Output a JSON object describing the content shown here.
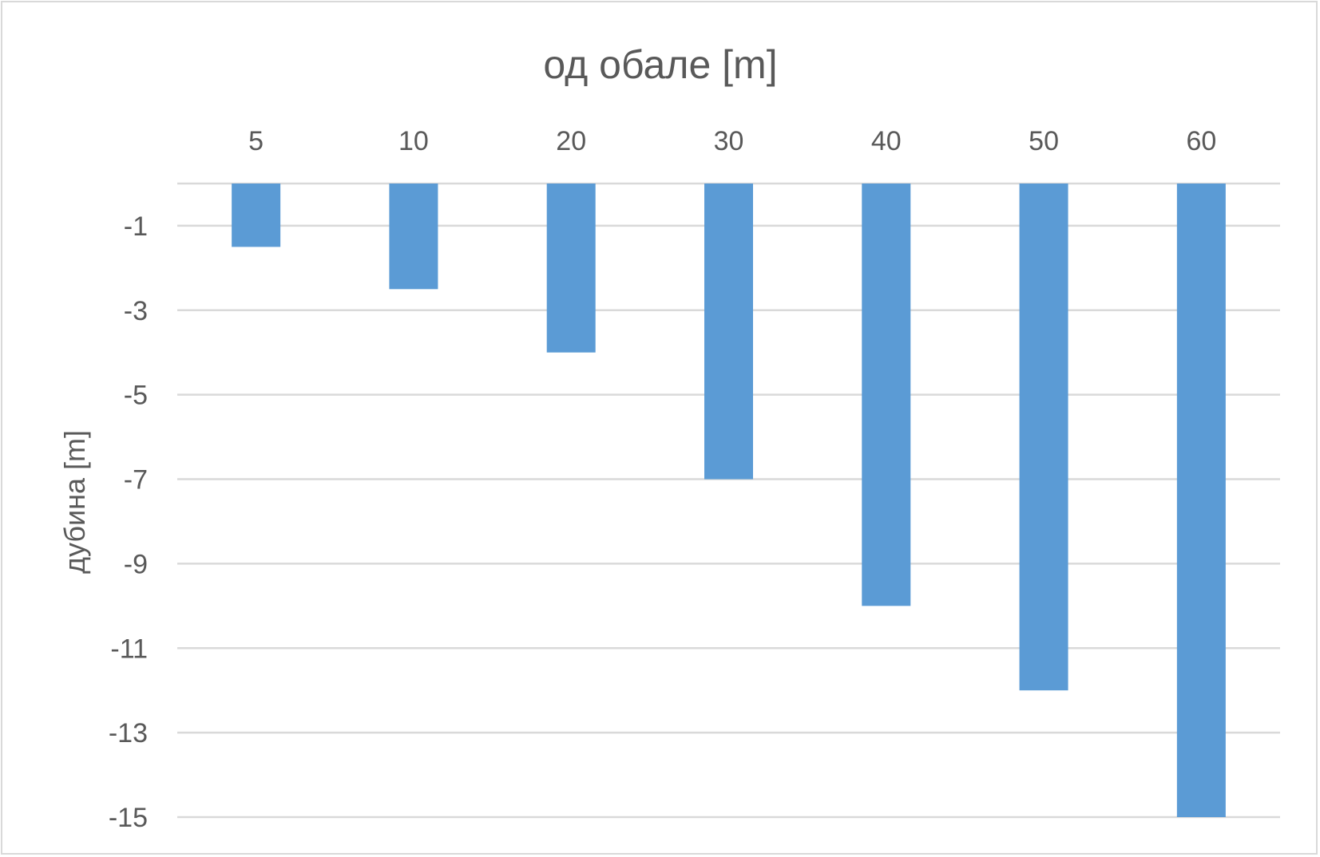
{
  "chart_data": {
    "type": "bar",
    "title": "од обале [m]",
    "xlabel": "",
    "ylabel": "дубина  [m]",
    "categories": [
      "5",
      "10",
      "20",
      "30",
      "40",
      "50",
      "60"
    ],
    "values": [
      -1.5,
      -2.5,
      -4,
      -7,
      -10,
      -12,
      -15
    ],
    "ylim": [
      -15,
      0
    ],
    "yticks": [
      "-1",
      "-3",
      "-5",
      "-7",
      "-9",
      "-11",
      "-13",
      "-15"
    ],
    "x_axis_position": "top",
    "grid": true,
    "legend": "none",
    "colors": {
      "bar": "#5b9bd5",
      "grid": "#d9d9d9",
      "text": "#595959"
    }
  }
}
